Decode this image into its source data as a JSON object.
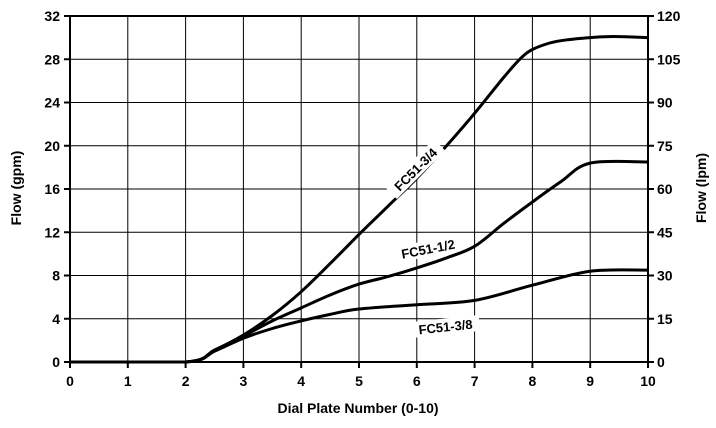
{
  "chart_data": {
    "type": "line",
    "xlabel": "Dial Plate Number (0-10)",
    "ylabel": "Flow (gpm)",
    "y2label": "Flow (lpm)",
    "xlim": [
      0,
      10
    ],
    "ylim": [
      0,
      32
    ],
    "y2lim": [
      0,
      120
    ],
    "x_ticks": [
      0,
      1,
      2,
      3,
      4,
      5,
      6,
      7,
      8,
      9,
      10
    ],
    "y_ticks": [
      0,
      4,
      8,
      12,
      16,
      20,
      24,
      28,
      32
    ],
    "y2_ticks": [
      0,
      15,
      30,
      45,
      60,
      75,
      90,
      105,
      120
    ],
    "grid": true,
    "legend": "none",
    "series": [
      {
        "name": "FC51-3/4",
        "x": [
          0,
          2,
          2.5,
          3,
          3.5,
          4,
          4.5,
          5,
          5.5,
          6,
          6.5,
          7,
          7.5,
          7.8,
          8,
          8.3,
          8.6,
          9,
          9.4,
          10
        ],
        "y": [
          0,
          0,
          1.1,
          2.5,
          4.3,
          6.5,
          9.1,
          11.8,
          14.4,
          17.0,
          19.9,
          23.0,
          26.3,
          28.1,
          28.9,
          29.5,
          29.8,
          30.0,
          30.1,
          30.0
        ]
      },
      {
        "name": "FC51-1/2",
        "x": [
          0,
          2,
          2.5,
          3,
          3.5,
          4,
          4.5,
          5,
          5.5,
          6,
          6.5,
          7,
          7.5,
          8,
          8.5,
          9,
          10
        ],
        "y": [
          0,
          0,
          1.1,
          2.4,
          3.8,
          5.0,
          6.2,
          7.2,
          7.9,
          8.7,
          9.6,
          10.7,
          12.8,
          14.8,
          16.7,
          18.4,
          18.5
        ]
      },
      {
        "name": "FC51-3/8",
        "x": [
          0,
          2,
          2.5,
          3,
          3.5,
          4,
          4.5,
          5,
          6,
          7,
          8,
          9,
          10
        ],
        "y": [
          0,
          0,
          1.0,
          2.2,
          3.1,
          3.8,
          4.4,
          4.9,
          5.3,
          5.7,
          7.1,
          8.4,
          8.5
        ]
      }
    ]
  }
}
